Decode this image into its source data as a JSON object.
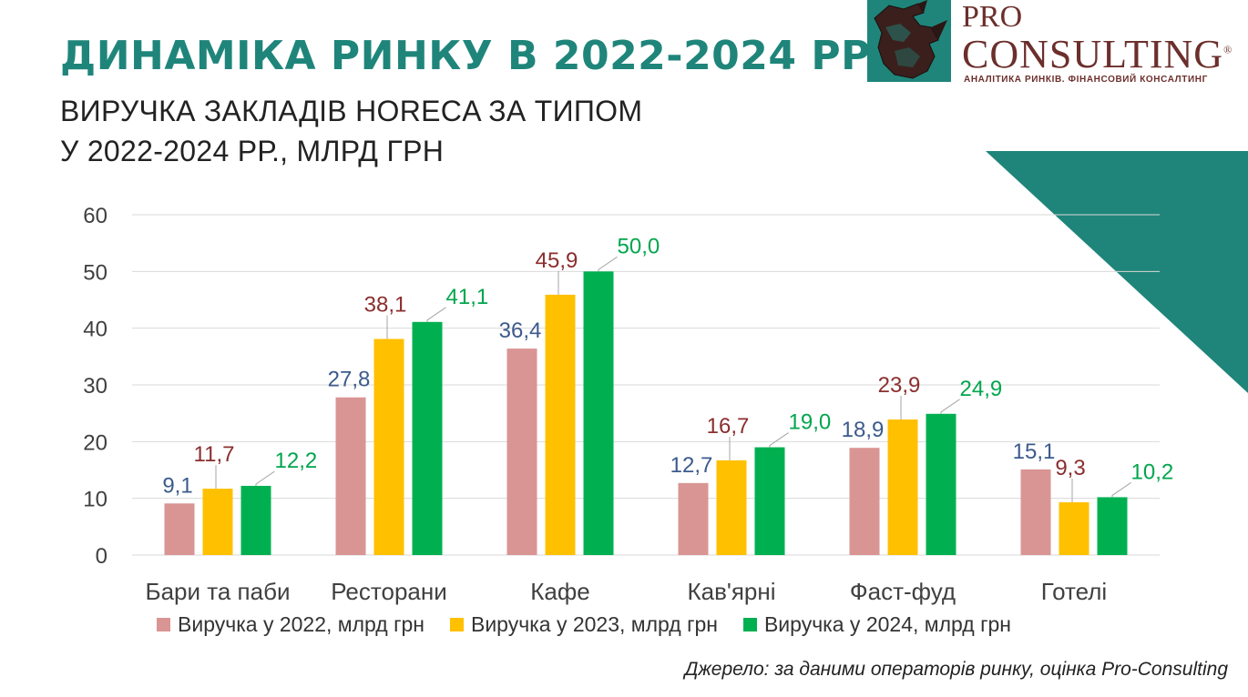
{
  "header": {
    "title": "ДИНАМІКА РИНКУ В 2022-2024 РР.",
    "subtitle_line1": "ВИРУЧКА ЗАКЛАДІВ HORECA ЗА ТИПОМ",
    "subtitle_line2": "У 2022-2024 РР., МЛРД ГРН"
  },
  "logo": {
    "word1": "PRO",
    "word2": "CONSULTING",
    "registered": "®",
    "tagline": "АНАЛІТИКА РИНКІВ. ФІНАНСОВИЙ КОНСАЛТИНГ",
    "color": "#6b2f2c",
    "box_color": "#1f857a"
  },
  "chart_data": {
    "type": "bar",
    "categories": [
      "Бари та паби",
      "Ресторани",
      "Кафе",
      "Кав'ярні",
      "Фаст-фуд",
      "Готелі"
    ],
    "series": [
      {
        "name": "Виручка у 2022, млрд грн",
        "values": [
          9.1,
          27.8,
          36.4,
          12.7,
          18.9,
          15.1
        ],
        "labels": [
          "9,1",
          "27,8",
          "36,4",
          "12,7",
          "18,9",
          "15,1"
        ],
        "color": "#d99594",
        "label_color": "#3c5a8c"
      },
      {
        "name": "Виручка у 2023, млрд грн",
        "values": [
          11.7,
          38.1,
          45.9,
          16.7,
          23.9,
          9.3
        ],
        "labels": [
          "11,7",
          "38,1",
          "45,9",
          "16,7",
          "23,9",
          "9,3"
        ],
        "color": "#ffc000",
        "label_color": "#8b2e2e"
      },
      {
        "name": "Виручка у 2024, млрд грн",
        "values": [
          12.2,
          41.1,
          50.0,
          19.0,
          24.9,
          10.2
        ],
        "labels": [
          "12,2",
          "41,1",
          "50,0",
          "19,0",
          "24,9",
          "10,2"
        ],
        "color": "#00b050",
        "label_color": "#00a64d"
      }
    ],
    "ylim": [
      0,
      60
    ],
    "yticks": [
      0,
      10,
      20,
      30,
      40,
      50,
      60
    ],
    "grid": true,
    "legend_position": "bottom"
  },
  "source": "Джерело: за даними операторів ринку, оцінка Pro-Consulting",
  "colors": {
    "accent": "#1f857a",
    "grid": "#d9d9d9",
    "axis_text": "#404040"
  }
}
